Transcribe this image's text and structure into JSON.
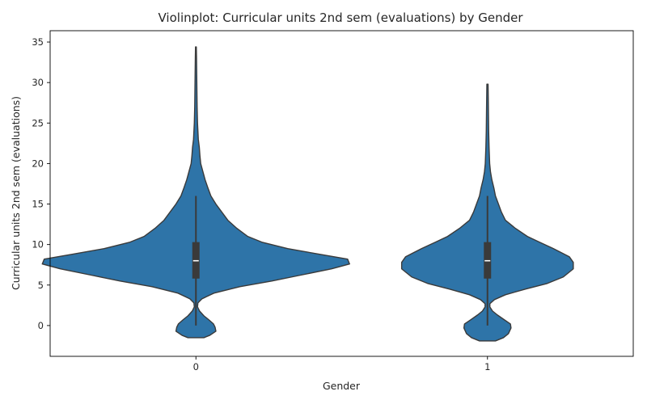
{
  "chart_data": {
    "type": "violin",
    "title": "Violinplot: Curricular units 2nd sem (evaluations) by Gender",
    "xlabel": "Gender",
    "ylabel": "Curricular units 2nd sem (evaluations)",
    "categories": [
      "0",
      "1"
    ],
    "ylim": [
      -3.8,
      36.4
    ],
    "yticks": [
      0,
      5,
      10,
      15,
      20,
      25,
      30,
      35
    ],
    "grid": false,
    "legend": "none",
    "colors": {
      "violin_fill": "#2e74a8",
      "violin_edge": "#3a3a3a",
      "box": "#3a3a3a",
      "median": "#ffffff",
      "frame": "#000000"
    },
    "violins": [
      {
        "category": "0",
        "box": {
          "q1": 5.8,
          "median": 8,
          "q3": 10.3,
          "whisker_low": 0,
          "whisker_high": 16
        },
        "density": [
          [
            -1.5,
            0.04
          ],
          [
            -1.2,
            0.07
          ],
          [
            -0.7,
            0.1
          ],
          [
            -0.2,
            0.096
          ],
          [
            0.2,
            0.088
          ],
          [
            0.7,
            0.065
          ],
          [
            1.2,
            0.04
          ],
          [
            1.8,
            0.018
          ],
          [
            2.3,
            0.008
          ],
          [
            2.8,
            0.01
          ],
          [
            3.3,
            0.03
          ],
          [
            4.0,
            0.09
          ],
          [
            4.8,
            0.22
          ],
          [
            5.5,
            0.38
          ],
          [
            6.2,
            0.52
          ],
          [
            7.0,
            0.68
          ],
          [
            7.6,
            0.77
          ],
          [
            8.2,
            0.76
          ],
          [
            8.8,
            0.62
          ],
          [
            9.5,
            0.46
          ],
          [
            10.3,
            0.33
          ],
          [
            11.0,
            0.26
          ],
          [
            12.0,
            0.205
          ],
          [
            13.0,
            0.16
          ],
          [
            14.0,
            0.13
          ],
          [
            15.0,
            0.1
          ],
          [
            16.0,
            0.075
          ],
          [
            17.0,
            0.06
          ],
          [
            18.0,
            0.046
          ],
          [
            19.0,
            0.035
          ],
          [
            20.0,
            0.024
          ],
          [
            21.0,
            0.02
          ],
          [
            22.0,
            0.017
          ],
          [
            23.0,
            0.012
          ],
          [
            25.0,
            0.008
          ],
          [
            27.0,
            0.006
          ],
          [
            29.0,
            0.005
          ],
          [
            31.0,
            0.004
          ],
          [
            33.0,
            0.003
          ],
          [
            34.4,
            0.002
          ]
        ]
      },
      {
        "category": "1",
        "box": {
          "q1": 5.8,
          "median": 8,
          "q3": 10.3,
          "whisker_low": 0,
          "whisker_high": 16
        },
        "density": [
          [
            -1.9,
            0.04
          ],
          [
            -1.5,
            0.08
          ],
          [
            -1.0,
            0.105
          ],
          [
            -0.3,
            0.118
          ],
          [
            0.2,
            0.115
          ],
          [
            0.7,
            0.085
          ],
          [
            1.3,
            0.05
          ],
          [
            1.8,
            0.025
          ],
          [
            2.3,
            0.012
          ],
          [
            2.7,
            0.012
          ],
          [
            3.2,
            0.035
          ],
          [
            3.8,
            0.09
          ],
          [
            4.5,
            0.19
          ],
          [
            5.2,
            0.3
          ],
          [
            6.0,
            0.38
          ],
          [
            7.0,
            0.43
          ],
          [
            7.8,
            0.43
          ],
          [
            8.5,
            0.41
          ],
          [
            9.5,
            0.33
          ],
          [
            10.3,
            0.26
          ],
          [
            11.0,
            0.2
          ],
          [
            12.0,
            0.14
          ],
          [
            13.0,
            0.09
          ],
          [
            14.0,
            0.07
          ],
          [
            15.0,
            0.055
          ],
          [
            16.0,
            0.04
          ],
          [
            17.0,
            0.032
          ],
          [
            18.0,
            0.022
          ],
          [
            19.0,
            0.015
          ],
          [
            20.0,
            0.011
          ],
          [
            22.0,
            0.008
          ],
          [
            24.0,
            0.006
          ],
          [
            26.0,
            0.005
          ],
          [
            28.0,
            0.004
          ],
          [
            29.8,
            0.003
          ]
        ]
      }
    ]
  }
}
